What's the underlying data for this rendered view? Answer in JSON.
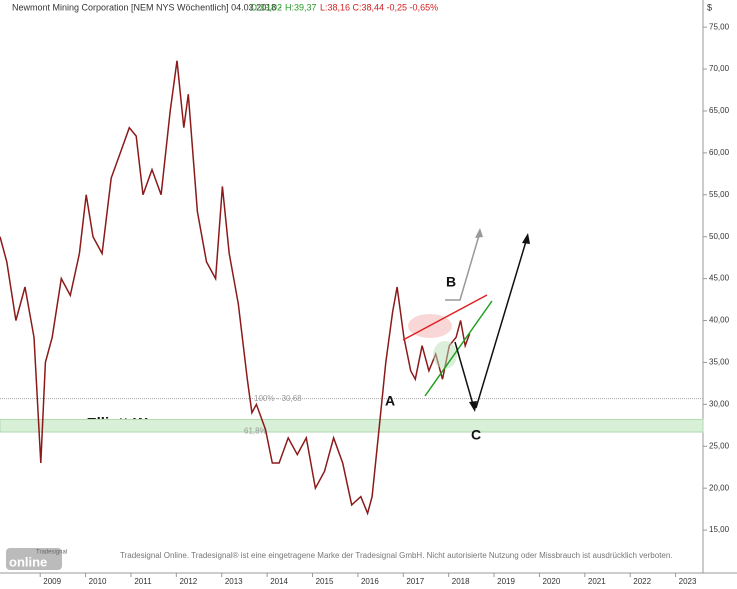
{
  "chart_data": {
    "type": "line",
    "title": "Newmont Mining Corporation [NEM NYS  Wöchentlich] 04.03.2018 -",
    "header_values": [
      "O:39,02",
      "H:39,37",
      "L:38,16 C:38,44 -0,25 -0,65%"
    ],
    "currency": "$",
    "watermark": "www.Elliott-Waves.com",
    "wave_labels": [
      "A",
      "B",
      "C"
    ],
    "fib_line": {
      "label": "100% - 30,68",
      "value": 30.68
    },
    "fib_zone": {
      "label": "61,8%",
      "low": 26.7,
      "high": 28.2
    },
    "footer": "Tradesignal Online. Tradesignal® ist eine eingetragene Marke der Tradesignal GmbH. Nicht autorisierte Nutzung oder Missbrauch ist ausdrücklich verboten.",
    "logo": [
      "Tradesignal",
      "online"
    ],
    "series": [
      {
        "name": "NEM",
        "color": "#8b1a1a",
        "x": [
          2007.85,
          2008.0,
          2008.2,
          2008.4,
          2008.6,
          2008.75,
          2008.85,
          2009.0,
          2009.2,
          2009.4,
          2009.6,
          2009.75,
          2009.9,
          2010.1,
          2010.3,
          2010.5,
          2010.7,
          2010.85,
          2011.0,
          2011.2,
          2011.4,
          2011.6,
          2011.75,
          2011.9,
          2012.0,
          2012.2,
          2012.4,
          2012.6,
          2012.75,
          2012.9,
          2013.1,
          2013.3,
          2013.4,
          2013.5,
          2013.7,
          2013.85,
          2014.0,
          2014.2,
          2014.4,
          2014.6,
          2014.8,
          2015.0,
          2015.2,
          2015.4,
          2015.6,
          2015.8,
          2015.95,
          2016.05,
          2016.2,
          2016.35,
          2016.5,
          2016.6,
          2016.75,
          2016.9,
          2017.0,
          2017.15,
          2017.3,
          2017.45,
          2017.6,
          2017.75,
          2017.9,
          2018.0,
          2018.1,
          2018.2
        ],
        "values": [
          50,
          47,
          40,
          44,
          38,
          23,
          35,
          38,
          45,
          43,
          48,
          55,
          50,
          48,
          57,
          60,
          63,
          62,
          55,
          58,
          55,
          65,
          71,
          63,
          67,
          53,
          47,
          45,
          56,
          48,
          42,
          33,
          29,
          30,
          27,
          23,
          23,
          26,
          24,
          26,
          20,
          22,
          26,
          23,
          18,
          19,
          17,
          19,
          27,
          35,
          41,
          44,
          38,
          34,
          33,
          37,
          34,
          36,
          33,
          37,
          38,
          40,
          37,
          38.44
        ]
      }
    ],
    "xlim": [
      2007.85,
      2023.34
    ],
    "xticks": [
      2009,
      2010,
      2011,
      2012,
      2013,
      2014,
      2015,
      2016,
      2017,
      2018,
      2019,
      2020,
      2021,
      2022,
      2023
    ],
    "ylim": [
      10,
      78
    ],
    "yticks": [
      {
        "value": 15,
        "label": "15,00"
      },
      {
        "value": 20,
        "label": "20,00"
      },
      {
        "value": 25,
        "label": "25,00"
      },
      {
        "value": 30,
        "label": "30,00"
      },
      {
        "value": 35,
        "label": "35,00"
      },
      {
        "value": 40,
        "label": "40,00"
      },
      {
        "value": 45,
        "label": "45,00"
      },
      {
        "value": 50,
        "label": "50,00"
      },
      {
        "value": 55,
        "label": "55,00"
      },
      {
        "value": 60,
        "label": "60,00"
      },
      {
        "value": 65,
        "label": "65,00"
      },
      {
        "value": 70,
        "label": "70,00"
      },
      {
        "value": 75,
        "label": "75,00"
      }
    ],
    "grid": false
  }
}
